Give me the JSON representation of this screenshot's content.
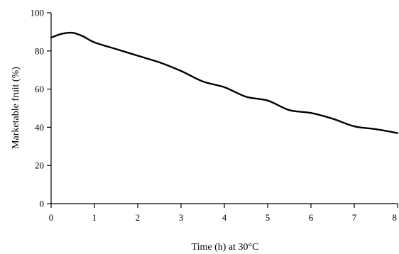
{
  "chart_data": {
    "type": "line",
    "xlabel": "Time (h) at 30°C",
    "ylabel": "Marketable fruit (%)",
    "xlim": [
      0,
      8
    ],
    "ylim": [
      0,
      100
    ],
    "x_ticks": [
      0,
      1,
      2,
      3,
      4,
      5,
      6,
      7,
      8
    ],
    "y_ticks": [
      0,
      20,
      40,
      60,
      80,
      100
    ],
    "grid": false,
    "legend": "none",
    "line_color": "#000000",
    "series": [
      {
        "x": [
          0,
          0.25,
          0.5,
          0.75,
          1,
          1.5,
          2,
          2.5,
          3,
          3.5,
          4,
          4.5,
          5,
          5.5,
          6,
          6.5,
          7,
          7.5,
          8
        ],
        "values": [
          87,
          89,
          89.5,
          87.5,
          84.5,
          81,
          77.5,
          74,
          69.5,
          64,
          61,
          56,
          54,
          49,
          47.5,
          44.5,
          40.5,
          39,
          37
        ]
      }
    ]
  }
}
